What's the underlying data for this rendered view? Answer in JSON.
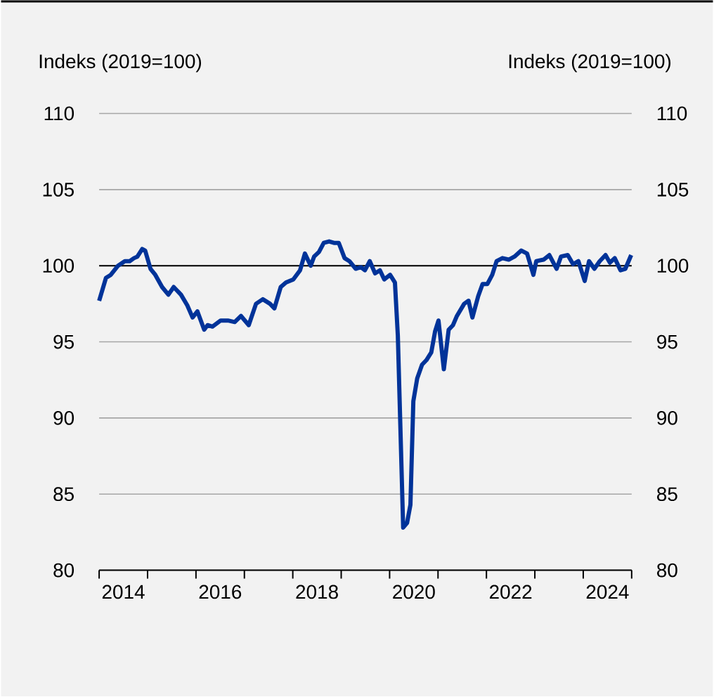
{
  "chart_data": {
    "type": "line",
    "ylabel": "Indeks (2019=100)",
    "y2label": "Indeks (2019=100)",
    "xlim": [
      2014,
      2025
    ],
    "xticks": [
      {
        "value": 2014,
        "label": null
      },
      {
        "value": 2014.5,
        "label": "2014"
      },
      {
        "value": 2015,
        "label": null
      },
      {
        "value": 2016,
        "label": null
      },
      {
        "value": 2016.5,
        "label": "2016"
      },
      {
        "value": 2017,
        "label": null
      },
      {
        "value": 2018,
        "label": null
      },
      {
        "value": 2018.5,
        "label": "2018"
      },
      {
        "value": 2019,
        "label": null
      },
      {
        "value": 2020,
        "label": null
      },
      {
        "value": 2020.5,
        "label": "2020"
      },
      {
        "value": 2021,
        "label": null
      },
      {
        "value": 2022,
        "label": null
      },
      {
        "value": 2022.5,
        "label": "2022"
      },
      {
        "value": 2023,
        "label": null
      },
      {
        "value": 2024,
        "label": null
      },
      {
        "value": 2024.5,
        "label": "2024"
      },
      {
        "value": 2025,
        "label": null
      }
    ],
    "ylim": [
      80,
      110
    ],
    "yticks": [
      80,
      85,
      90,
      95,
      100,
      105,
      110
    ],
    "y2lim": [
      80,
      110
    ],
    "y2ticks": [
      80,
      85,
      90,
      95,
      100,
      105,
      110
    ],
    "grid": "y",
    "marker": "none",
    "line_style": "solid",
    "ref_lines": [
      {
        "axis": "y",
        "value": 100,
        "color": "#000000"
      }
    ],
    "x": [
      2014.0,
      2014.14,
      2014.24,
      2014.39,
      2014.53,
      2014.63,
      2014.72,
      2014.79,
      2014.89,
      2014.95,
      2015.06,
      2015.16,
      2015.3,
      2015.43,
      2015.54,
      2015.69,
      2015.82,
      2015.93,
      2016.03,
      2016.17,
      2016.24,
      2016.34,
      2016.51,
      2016.66,
      2016.8,
      2016.93,
      2017.09,
      2017.24,
      2017.38,
      2017.53,
      2017.62,
      2017.75,
      2017.86,
      2018.01,
      2018.15,
      2018.25,
      2018.37,
      2018.44,
      2018.54,
      2018.64,
      2018.75,
      2018.85,
      2018.95,
      2019.07,
      2019.17,
      2019.3,
      2019.41,
      2019.49,
      2019.59,
      2019.7,
      2019.8,
      2019.89,
      2020.01,
      2020.11,
      2020.17,
      2020.28,
      2020.36,
      2020.43,
      2020.49,
      2020.57,
      2020.67,
      2020.76,
      2020.86,
      2020.94,
      2021.01,
      2021.12,
      2021.22,
      2021.31,
      2021.39,
      2021.54,
      2021.63,
      2021.71,
      2021.83,
      2021.92,
      2022.02,
      2022.12,
      2022.21,
      2022.33,
      2022.46,
      2022.58,
      2022.72,
      2022.84,
      2022.97,
      2023.03,
      2023.18,
      2023.3,
      2023.45,
      2023.54,
      2023.68,
      2023.79,
      2023.9,
      2024.03,
      2024.12,
      2024.23,
      2024.34,
      2024.46,
      2024.55,
      2024.65,
      2024.77,
      2024.87,
      2024.99
    ],
    "series": [
      {
        "color": "#003399",
        "values": [
          97.7,
          99.2,
          99.4,
          100.0,
          100.3,
          100.3,
          100.5,
          100.6,
          101.1,
          101.0,
          99.8,
          99.4,
          98.6,
          98.1,
          98.6,
          98.1,
          97.4,
          96.6,
          97.0,
          95.8,
          96.1,
          96.0,
          96.4,
          96.4,
          96.3,
          96.7,
          96.1,
          97.5,
          97.8,
          97.5,
          97.2,
          98.6,
          98.9,
          99.1,
          99.7,
          100.8,
          100.0,
          100.6,
          100.9,
          101.5,
          101.6,
          101.5,
          101.5,
          100.5,
          100.3,
          99.8,
          99.9,
          99.7,
          100.3,
          99.5,
          99.7,
          99.1,
          99.4,
          98.9,
          95.4,
          82.8,
          83.1,
          84.3,
          91.1,
          92.6,
          93.5,
          93.8,
          94.3,
          95.7,
          96.4,
          93.2,
          95.8,
          96.1,
          96.7,
          97.5,
          97.7,
          96.6,
          98.0,
          98.8,
          98.8,
          99.4,
          100.3,
          100.5,
          100.4,
          100.6,
          101.0,
          100.8,
          99.4,
          100.3,
          100.4,
          100.7,
          99.8,
          100.6,
          100.7,
          100.1,
          100.3,
          99.0,
          100.3,
          99.8,
          100.3,
          100.7,
          100.2,
          100.5,
          99.7,
          99.8,
          100.7
        ]
      }
    ]
  }
}
